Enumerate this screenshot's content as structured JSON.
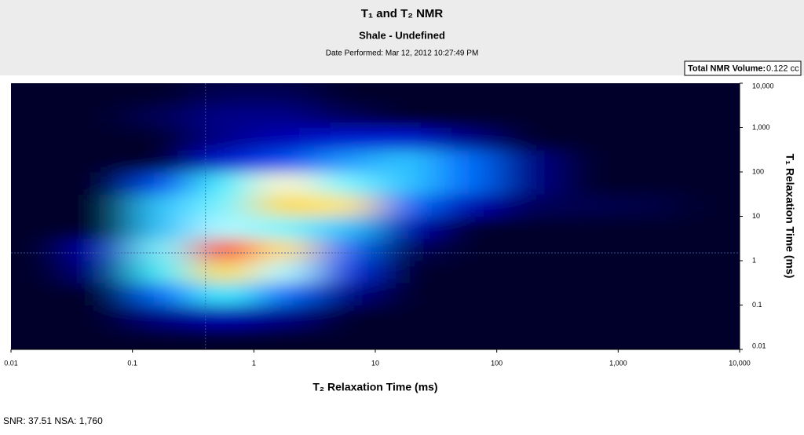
{
  "chart_data": {
    "type": "heatmap",
    "title": "T₁ and T₂ NMR",
    "subtitle": "Shale - Undefined",
    "date": "Date Performed: Mar 12, 2012 10:27:49 PM",
    "volume_label": "Total NMR Volume:",
    "volume_value": "0.122 cc",
    "footer": "SNR: 37.51 NSA: 1,760",
    "x_label": "T₂ Relaxation Time (ms)",
    "y_label": "T₁ Relaxation Time (ms)",
    "xscale": "log",
    "yscale": "log",
    "xlim": [
      0.01,
      10000
    ],
    "ylim": [
      0.01,
      10000
    ],
    "xticks": [
      0.01,
      0.1,
      1,
      10,
      100,
      {
        "value": 1000,
        "label": "1,000"
      },
      {
        "value": 10000,
        "label": "10,000"
      }
    ],
    "yticks": [
      0.01,
      0.1,
      1,
      10,
      100,
      {
        "value": 1000,
        "label": "1,000"
      },
      {
        "value": 10000,
        "label": "10,000"
      }
    ],
    "xbins": [
      0.01,
      0.0316,
      0.1,
      0.316,
      1,
      3.16,
      10,
      31.6,
      100,
      316,
      1000,
      3162,
      10000
    ],
    "ybins": [
      0.01,
      0.0316,
      0.1,
      0.316,
      1,
      3.16,
      10,
      31.6,
      100,
      316,
      1000,
      3162,
      10000
    ],
    "vlim": [
      0,
      1
    ],
    "colors": [
      "#00002a",
      "#0000c8",
      "#0060ff",
      "#40f0ff",
      "#ffffff",
      "#ffd000",
      "#ff2000"
    ],
    "crosshair": {
      "x": 0.4,
      "y": 1.5
    },
    "values": [
      [
        0,
        0,
        0,
        0,
        0,
        0,
        0,
        0,
        0,
        0,
        0,
        0
      ],
      [
        0,
        0,
        0.1,
        0.15,
        0.1,
        0,
        0,
        0,
        0,
        0,
        0,
        0
      ],
      [
        0,
        0,
        0.35,
        0.5,
        0.35,
        0.1,
        0,
        0,
        0,
        0,
        0,
        0
      ],
      [
        0,
        0.1,
        0.5,
        0.8,
        0.6,
        0.25,
        0,
        0,
        0,
        0,
        0,
        0
      ],
      [
        0,
        0.15,
        0.55,
        1,
        0.75,
        0.35,
        0.05,
        0,
        0,
        0,
        0,
        0
      ],
      [
        0,
        0,
        0.45,
        0.6,
        0.55,
        0.45,
        0.15,
        0,
        0,
        0,
        0,
        0
      ],
      [
        0,
        0,
        0.45,
        0.55,
        0.8,
        0.75,
        0.35,
        0.15,
        0.05,
        0.04,
        0.03,
        0
      ],
      [
        0,
        0,
        0.3,
        0.5,
        0.7,
        0.55,
        0.45,
        0.35,
        0.1,
        0,
        0,
        0
      ],
      [
        0,
        0,
        0,
        0.2,
        0.3,
        0.4,
        0.45,
        0.35,
        0.1,
        0,
        0,
        0
      ],
      [
        0,
        0,
        0,
        0.1,
        0.15,
        0.2,
        0.2,
        0.1,
        0,
        0,
        0,
        0
      ],
      [
        0,
        0,
        0.05,
        0.1,
        0.1,
        0.05,
        0,
        0,
        0,
        0,
        0,
        0
      ],
      [
        0,
        0,
        0,
        0.05,
        0.05,
        0,
        0,
        0,
        0,
        0,
        0,
        0
      ]
    ]
  }
}
